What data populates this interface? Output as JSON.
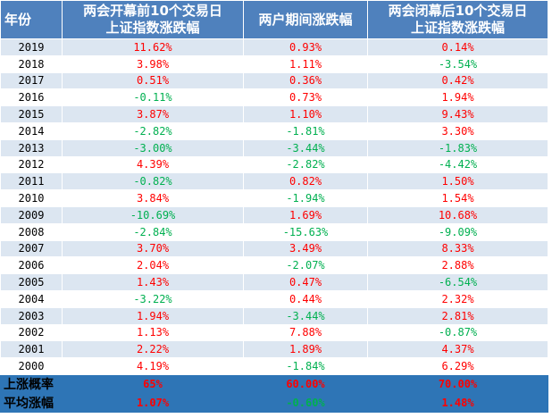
{
  "headers": {
    "year": "年份",
    "col1_line1": "两会开幕前10个交易日",
    "col1_line2": "上证指数涨跌幅",
    "col2": "两户期间涨跌幅",
    "col3_line1": "两会闭幕后10个交易日",
    "col3_line2": "上证指数涨跌幅"
  },
  "colors": {
    "header_bg": "#4f81bd",
    "band": "#dce6f1",
    "summary_bg": "#2e75b6",
    "up": "#ff0000",
    "down": "#00b050"
  },
  "rows": [
    {
      "year": "2019",
      "before": "11.62%",
      "during": "0.93%",
      "after": "0.14%"
    },
    {
      "year": "2018",
      "before": "3.98%",
      "during": "1.11%",
      "after": "-3.54%"
    },
    {
      "year": "2017",
      "before": "0.51%",
      "during": "0.36%",
      "after": "0.42%"
    },
    {
      "year": "2016",
      "before": "-0.11%",
      "during": "0.73%",
      "after": "1.94%"
    },
    {
      "year": "2015",
      "before": "3.87%",
      "during": "1.10%",
      "after": "9.43%"
    },
    {
      "year": "2014",
      "before": "-2.82%",
      "during": "-1.81%",
      "after": "3.30%"
    },
    {
      "year": "2013",
      "before": "-3.00%",
      "during": "-3.44%",
      "after": "-1.83%"
    },
    {
      "year": "2012",
      "before": "4.39%",
      "during": "-2.82%",
      "after": "-4.42%"
    },
    {
      "year": "2011",
      "before": "-0.82%",
      "during": "0.82%",
      "after": "1.50%"
    },
    {
      "year": "2010",
      "before": "3.84%",
      "during": "-1.94%",
      "after": "1.54%"
    },
    {
      "year": "2009",
      "before": "-10.69%",
      "during": "1.69%",
      "after": "10.68%"
    },
    {
      "year": "2008",
      "before": "-2.84%",
      "during": "-15.63%",
      "after": "-9.09%"
    },
    {
      "year": "2007",
      "before": "3.70%",
      "during": "3.49%",
      "after": "8.33%"
    },
    {
      "year": "2006",
      "before": "2.04%",
      "during": "-2.07%",
      "after": "2.88%"
    },
    {
      "year": "2005",
      "before": "1.43%",
      "during": "0.47%",
      "after": "-6.54%"
    },
    {
      "year": "2004",
      "before": "-3.22%",
      "during": "0.44%",
      "after": "2.32%"
    },
    {
      "year": "2003",
      "before": "1.94%",
      "during": "-3.44%",
      "after": "2.81%"
    },
    {
      "year": "2002",
      "before": "1.13%",
      "during": "7.88%",
      "after": "-0.87%"
    },
    {
      "year": "2001",
      "before": "2.22%",
      "during": "1.89%",
      "after": "4.37%"
    },
    {
      "year": "2000",
      "before": "4.19%",
      "during": "-1.84%",
      "after": "6.29%"
    }
  ],
  "summary": [
    {
      "label": "上涨概率",
      "before": "65%",
      "during": "60.00%",
      "after": "70.00%"
    },
    {
      "label": "平均涨幅",
      "before": "1.07%",
      "during": "-0.60%",
      "after": "1.48%"
    }
  ]
}
